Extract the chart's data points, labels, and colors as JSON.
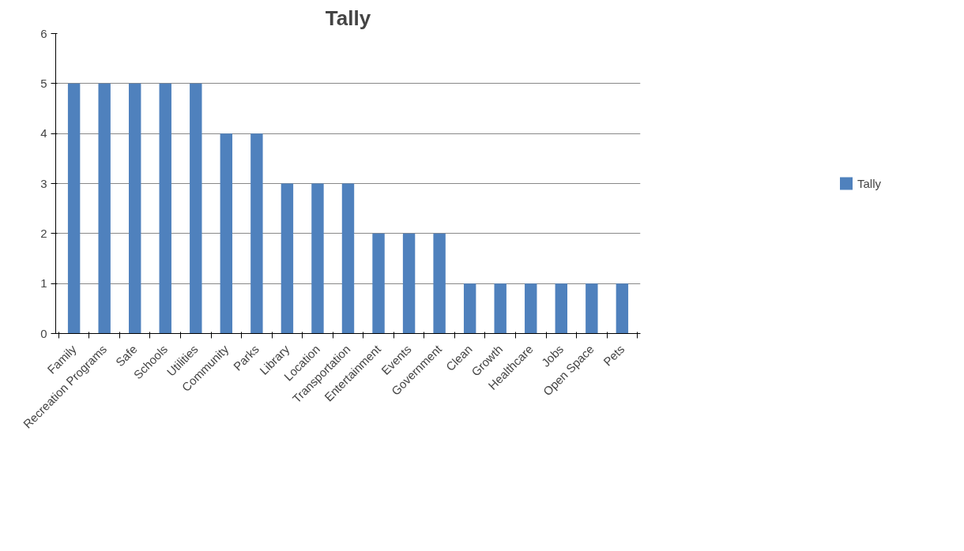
{
  "chart_data": {
    "type": "bar",
    "title": "Tally",
    "categories": [
      "Family",
      "Recreation Programs",
      "Safe",
      "Schools",
      "Utilities",
      "Community",
      "Parks",
      "Library",
      "Location",
      "Transportation",
      "Entertainment",
      "Events",
      "Government",
      "Clean",
      "Growth",
      "Healthcare",
      "Jobs",
      "Open Space",
      "Pets"
    ],
    "series": [
      {
        "name": "Tally",
        "color": "#4f81bd",
        "values": [
          5,
          5,
          5,
          5,
          5,
          4,
          4,
          3,
          3,
          3,
          2,
          2,
          2,
          1,
          1,
          1,
          1,
          1,
          1
        ]
      }
    ],
    "ylim": [
      0,
      6
    ],
    "yticks": [
      0,
      1,
      2,
      3,
      4,
      5,
      6
    ],
    "grid": "y",
    "legend": "right"
  }
}
